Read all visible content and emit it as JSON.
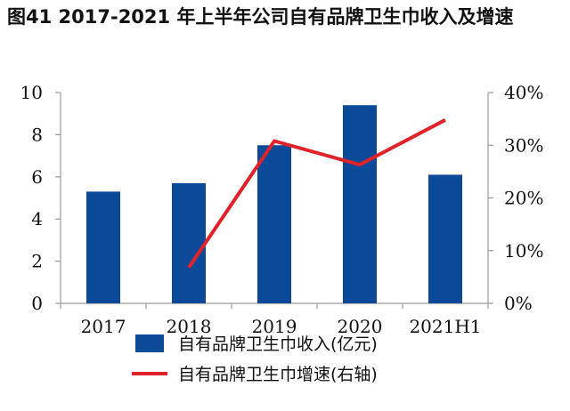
{
  "chart_data": {
    "type": "bar",
    "title": "图41  2017-2021 年上半年公司自有品牌卫生巾收入及增速",
    "categories": [
      "2017",
      "2018",
      "2019",
      "2020",
      "2021H1"
    ],
    "y_left": {
      "lim": [
        0,
        10
      ],
      "ticks": [
        "0",
        "2",
        "4",
        "6",
        "8",
        "10"
      ]
    },
    "y_right": {
      "lim": [
        0,
        40
      ],
      "ticks": [
        "0%",
        "10%",
        "20%",
        "30%",
        "40%"
      ]
    },
    "series": [
      {
        "name": "自有品牌卫生巾收入(亿元)",
        "kind": "bar",
        "axis": "left",
        "color": "#0b4a99",
        "values": [
          5.3,
          5.7,
          7.5,
          9.4,
          6.1
        ]
      },
      {
        "name": "自有品牌卫生巾增速(右轴)",
        "kind": "line",
        "axis": "right",
        "color": "#e0232b",
        "values": [
          null,
          6.8,
          30.8,
          26.3,
          34.8
        ]
      }
    ],
    "grid": false,
    "legend_position": "bottom"
  }
}
